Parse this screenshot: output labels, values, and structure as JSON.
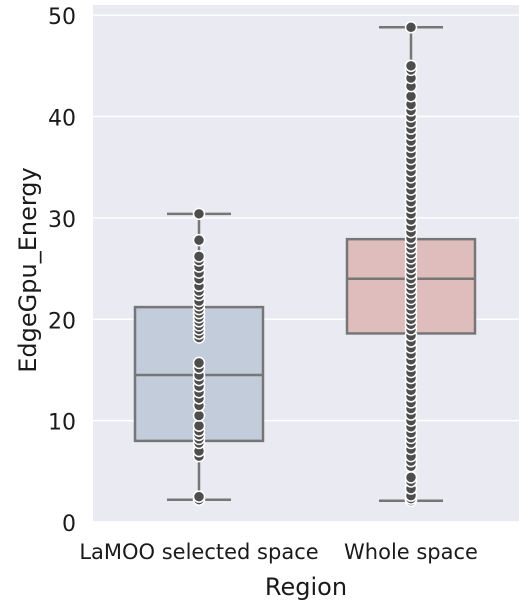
{
  "chart_data": {
    "type": "boxplot",
    "title": "",
    "xlabel": "Region",
    "ylabel": "EdgeGpu_Energy",
    "ylim": [
      0,
      51
    ],
    "yticks": [
      0,
      10,
      20,
      30,
      40,
      50
    ],
    "grid": true,
    "categories": [
      "LaMOO selected space",
      "Whole space"
    ],
    "boxes": [
      {
        "category": "LaMOO selected space",
        "color": "#c3ccdb",
        "whisker_low": 2.2,
        "q1": 8.0,
        "median": 14.5,
        "q3": 21.2,
        "whisker_high": 30.4,
        "points": [
          2.2,
          2.5,
          6.5,
          7.0,
          7.8,
          8.2,
          8.6,
          9.0,
          9.5,
          10.5,
          11.5,
          12.2,
          12.8,
          13.4,
          14.0,
          14.5,
          15.2,
          15.7,
          18.2,
          18.6,
          19.0,
          19.4,
          19.8,
          20.2,
          20.6,
          21.0,
          21.4,
          21.8,
          22.4,
          22.8,
          23.3,
          24.0,
          24.6,
          25.2,
          25.8,
          26.2,
          27.8,
          30.4
        ]
      },
      {
        "category": "Whole space",
        "color": "#dfbdbc",
        "whisker_low": 2.1,
        "q1": 18.6,
        "median": 24.0,
        "q3": 27.9,
        "whisker_high": 48.8,
        "points": [
          2.1,
          2.3,
          2.6,
          3.3,
          4.0,
          4.4,
          5.5,
          6.0,
          6.5,
          7.2,
          7.8,
          8.3,
          8.8,
          9.4,
          10.0,
          10.6,
          11.2,
          11.8,
          12.4,
          13.0,
          13.6,
          14.2,
          14.8,
          15.4,
          16.0,
          16.6,
          17.2,
          17.8,
          18.4,
          19.0,
          19.5,
          20.0,
          20.5,
          21.0,
          21.5,
          22.0,
          22.5,
          23.0,
          23.5,
          24.0,
          24.5,
          25.0,
          25.5,
          26.0,
          26.5,
          27.0,
          27.5,
          28.0,
          28.6,
          29.2,
          29.8,
          30.4,
          31.0,
          31.6,
          32.2,
          32.8,
          33.4,
          34.0,
          34.6,
          35.2,
          35.8,
          36.4,
          37.0,
          37.6,
          38.2,
          38.8,
          39.4,
          40.0,
          40.6,
          41.2,
          42.0,
          43.0,
          43.8,
          44.6,
          45.0,
          48.8
        ]
      }
    ]
  }
}
